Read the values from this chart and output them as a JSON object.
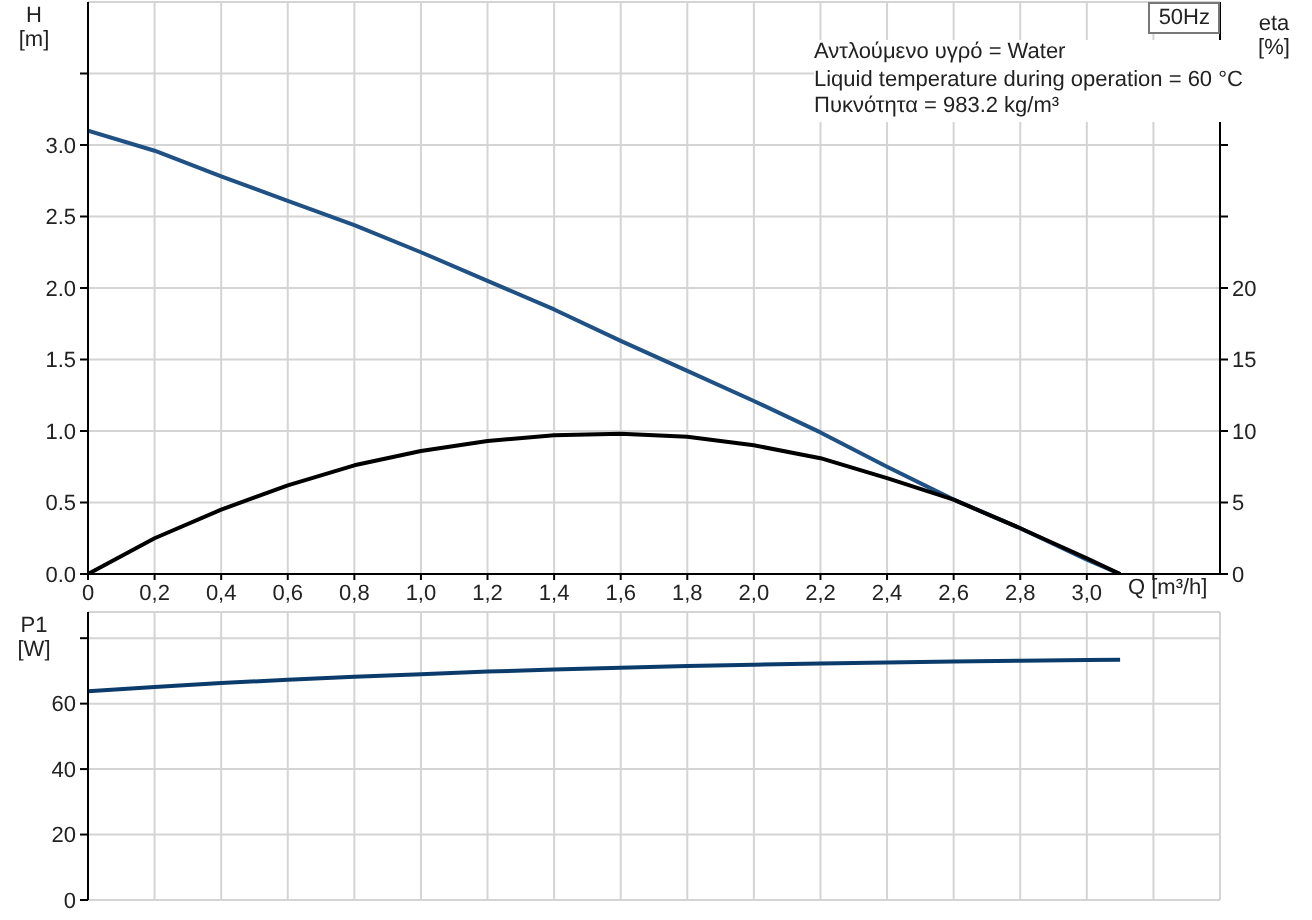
{
  "chart_data": [
    {
      "type": "line",
      "xlabel": "Q [m³/h]",
      "ylabel": "H [m]",
      "y2label": "eta [%]",
      "grid": true,
      "annotations": [
        "50Hz",
        "Αντλούμενο υγρό = Water",
        "Liquid temperature during operation = 60 °C",
        "Πυκνότητα = 983.2 kg/m³"
      ],
      "x": [
        0,
        0.2,
        0.4,
        0.6,
        0.8,
        1.0,
        1.2,
        1.4,
        1.6,
        1.8,
        2.0,
        2.2,
        2.4,
        2.6,
        2.8,
        3.0,
        3.1
      ],
      "series": [
        {
          "color": "#1f5185",
          "values": [
            3.1,
            2.96,
            2.78,
            2.61,
            2.44,
            2.25,
            2.05,
            1.85,
            1.63,
            1.42,
            1.21,
            0.99,
            0.75,
            0.52,
            0.32,
            0.1,
            0
          ]
        },
        {
          "color": "#000000",
          "axis": "y2",
          "values": [
            0,
            2.5,
            4.5,
            6.2,
            7.6,
            8.6,
            9.3,
            9.7,
            9.8,
            9.6,
            9.0,
            8.1,
            6.7,
            5.2,
            3.2,
            1.1,
            0
          ]
        }
      ],
      "xlim": [
        0,
        3.4
      ],
      "xticks": [
        0,
        {
          "value": 0.2,
          "label": "0,2"
        },
        {
          "value": 0.4,
          "label": "0,4"
        },
        {
          "value": 0.6,
          "label": "0,6"
        },
        {
          "value": 0.8,
          "label": "0,8"
        },
        {
          "value": 1.0,
          "label": "1,0"
        },
        {
          "value": 1.2,
          "label": "1,2"
        },
        {
          "value": 1.4,
          "label": "1,4"
        },
        {
          "value": 1.6,
          "label": "1,6"
        },
        {
          "value": 1.8,
          "label": "1,8"
        },
        {
          "value": 2.0,
          "label": "2,0"
        },
        {
          "value": 2.2,
          "label": "2,2"
        },
        {
          "value": 2.4,
          "label": "2,4"
        },
        {
          "value": 2.6,
          "label": "2,6"
        },
        {
          "value": 2.8,
          "label": "2,8"
        },
        {
          "value": 3.0,
          "label": "3,0"
        },
        {
          "value": 3.2,
          "label": null
        }
      ],
      "ylim": [
        0,
        4
      ],
      "yticks": [
        {
          "value": 0,
          "label": "0.0"
        },
        {
          "value": 0.5,
          "label": "0.5"
        },
        {
          "value": 1,
          "label": "1.0"
        },
        {
          "value": 1.5,
          "label": "1.5"
        },
        {
          "value": 2,
          "label": "2.0"
        },
        {
          "value": 2.5,
          "label": "2.5"
        },
        {
          "value": 3,
          "label": "3.0"
        },
        {
          "value": 3.5,
          "label": null
        }
      ],
      "y2lim": [
        0,
        40
      ],
      "y2ticks": [
        0,
        5,
        10,
        15,
        20,
        {
          "value": 25,
          "label": null
        },
        {
          "value": 30,
          "label": null
        },
        {
          "value": 35,
          "label": null
        }
      ]
    },
    {
      "type": "line",
      "ylabel": "P1 [W]",
      "grid": true,
      "tick_labels": "y",
      "x": [
        0,
        0.2,
        0.4,
        0.6,
        0.8,
        1.0,
        1.2,
        1.4,
        1.6,
        1.8,
        2.0,
        2.2,
        2.4,
        2.6,
        2.8,
        3.0,
        3.1
      ],
      "series": [
        {
          "color": "#0b3b6b",
          "values": [
            63.8,
            65.1,
            66.3,
            67.3,
            68.2,
            69.0,
            69.8,
            70.4,
            71.0,
            71.5,
            71.9,
            72.3,
            72.6,
            72.9,
            73.1,
            73.3,
            73.4
          ]
        }
      ],
      "xlim": [
        0,
        3.4
      ],
      "xticks": [
        {
          "value": 0,
          "label": null
        },
        {
          "value": 0.2,
          "label": null
        },
        {
          "value": 0.4,
          "label": null
        },
        {
          "value": 0.6,
          "label": null
        },
        {
          "value": 0.8,
          "label": null
        },
        {
          "value": 1.0,
          "label": null
        },
        {
          "value": 1.2,
          "label": null
        },
        {
          "value": 1.4,
          "label": null
        },
        {
          "value": 1.6,
          "label": null
        },
        {
          "value": 1.8,
          "label": null
        },
        {
          "value": 2.0,
          "label": null
        },
        {
          "value": 2.2,
          "label": null
        },
        {
          "value": 2.4,
          "label": null
        },
        {
          "value": 2.6,
          "label": null
        },
        {
          "value": 2.8,
          "label": null
        },
        {
          "value": 3.0,
          "label": null
        },
        {
          "value": 3.2,
          "label": null
        }
      ],
      "ylim": [
        0,
        88
      ],
      "yticks": [
        0,
        20,
        40,
        60,
        {
          "value": 80,
          "label": null
        }
      ]
    }
  ]
}
